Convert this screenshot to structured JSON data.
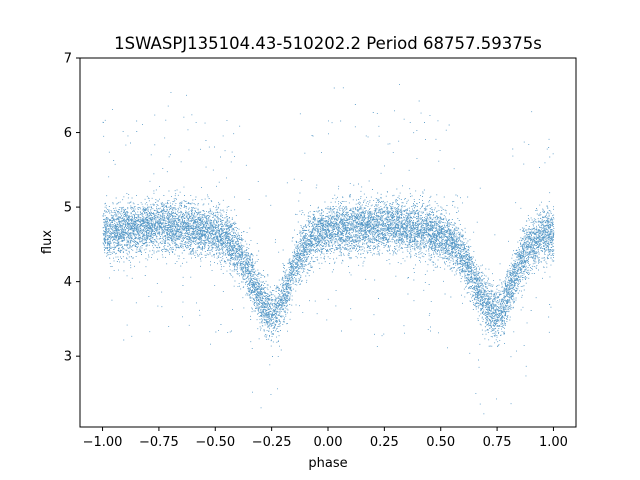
{
  "chart_data": {
    "type": "scatter",
    "title": "1SWASPJ135104.43-510202.2 Period 68757.59375s",
    "xlabel": "phase",
    "ylabel": "flux",
    "xlim": [
      -1.1,
      1.1
    ],
    "ylim": [
      2.05,
      7.0
    ],
    "xticks": [
      -1.0,
      -0.75,
      -0.5,
      -0.25,
      0.0,
      0.25,
      0.5,
      0.75,
      1.0
    ],
    "xtick_labels": [
      "−1.00",
      "−0.75",
      "−0.50",
      "−0.25",
      "0.00",
      "0.25",
      "0.50",
      "0.75",
      "1.00"
    ],
    "yticks": [
      3,
      4,
      5,
      6,
      7
    ],
    "ytick_labels": [
      "3",
      "4",
      "5",
      "6",
      "7"
    ],
    "grid": false,
    "marker_color": "#1f77b4",
    "light_curve_profile": {
      "phase": [
        -1.0,
        -0.9,
        -0.8,
        -0.7,
        -0.6,
        -0.5,
        -0.45,
        -0.4,
        -0.35,
        -0.3,
        -0.27,
        -0.25,
        -0.23,
        -0.2,
        -0.15,
        -0.1,
        -0.05,
        0.0,
        0.1,
        0.2,
        0.3,
        0.4,
        0.5,
        0.55,
        0.6,
        0.65,
        0.7,
        0.73,
        0.75,
        0.77,
        0.8,
        0.85,
        0.9,
        0.95,
        1.0
      ],
      "flux": [
        4.65,
        4.7,
        4.75,
        4.75,
        4.72,
        4.65,
        4.55,
        4.4,
        4.1,
        3.75,
        3.6,
        3.55,
        3.6,
        3.8,
        4.2,
        4.5,
        4.62,
        4.68,
        4.72,
        4.75,
        4.75,
        4.7,
        4.62,
        4.5,
        4.3,
        4.0,
        3.7,
        3.58,
        3.55,
        3.6,
        3.85,
        4.25,
        4.5,
        4.62,
        4.65
      ]
    },
    "scatter_sigma": 0.17,
    "outlier_fraction": 0.03,
    "n_points": 14000
  }
}
